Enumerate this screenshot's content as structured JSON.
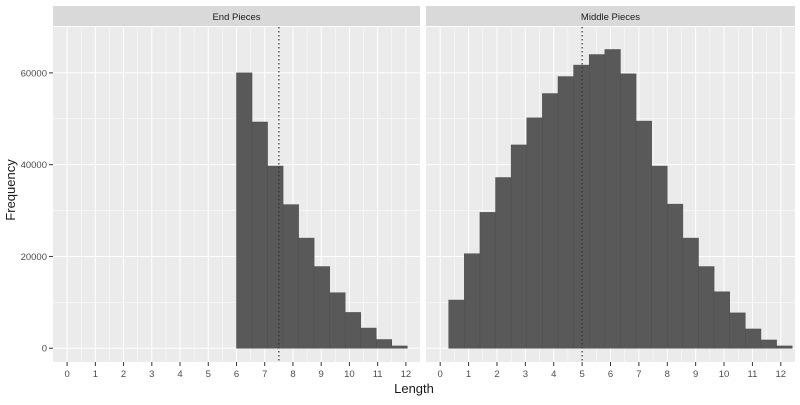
{
  "chart_data": {
    "type": "bar",
    "xlabel": "Length",
    "ylabel": "Frequency",
    "xlim": [
      -0.5,
      12.5
    ],
    "ylim": [
      -3000,
      70000
    ],
    "x_ticks": [
      0,
      1,
      2,
      3,
      4,
      5,
      6,
      7,
      8,
      9,
      10,
      11,
      12
    ],
    "y_ticks": [
      0,
      20000,
      40000,
      60000
    ],
    "y_tick_labels": [
      "0",
      "20000",
      "40000",
      "60000"
    ],
    "bin_width": 0.55,
    "colors": {
      "panel_bg": "#ebebeb",
      "grid": "#ffffff",
      "strip_bg": "#d9d9d9",
      "bar_fill": "#595959",
      "bar_stroke": "#4d4d4d",
      "text": "#4d4d4d",
      "title_text": "#1a1a1a",
      "vline": "#333333"
    },
    "panels": [
      {
        "title": "End Pieces",
        "vline": 7.5,
        "bins": [
          {
            "x0": 6.0,
            "value": 60000
          },
          {
            "x0": 6.55,
            "value": 49300
          },
          {
            "x0": 7.1,
            "value": 39700
          },
          {
            "x0": 7.65,
            "value": 31300
          },
          {
            "x0": 8.2,
            "value": 24000
          },
          {
            "x0": 8.75,
            "value": 17800
          },
          {
            "x0": 9.3,
            "value": 12100
          },
          {
            "x0": 9.85,
            "value": 7800
          },
          {
            "x0": 10.4,
            "value": 4400
          },
          {
            "x0": 10.95,
            "value": 1900
          },
          {
            "x0": 11.5,
            "value": 500
          }
        ]
      },
      {
        "title": "Middle Pieces",
        "vline": 5.0,
        "bins": [
          {
            "x0": 0.3,
            "value": 10500
          },
          {
            "x0": 0.85,
            "value": 20600
          },
          {
            "x0": 1.4,
            "value": 29600
          },
          {
            "x0": 1.95,
            "value": 37200
          },
          {
            "x0": 2.5,
            "value": 44300
          },
          {
            "x0": 3.05,
            "value": 50200
          },
          {
            "x0": 3.6,
            "value": 55500
          },
          {
            "x0": 4.15,
            "value": 59200
          },
          {
            "x0": 4.7,
            "value": 61700
          },
          {
            "x0": 5.25,
            "value": 64000
          },
          {
            "x0": 5.8,
            "value": 65100
          },
          {
            "x0": 6.35,
            "value": 59800
          },
          {
            "x0": 6.9,
            "value": 49500
          },
          {
            "x0": 7.45,
            "value": 39700
          },
          {
            "x0": 8.0,
            "value": 31400
          },
          {
            "x0": 8.55,
            "value": 24000
          },
          {
            "x0": 9.1,
            "value": 17800
          },
          {
            "x0": 9.65,
            "value": 12300
          },
          {
            "x0": 10.2,
            "value": 7700
          },
          {
            "x0": 10.75,
            "value": 4200
          },
          {
            "x0": 11.3,
            "value": 1800
          },
          {
            "x0": 11.85,
            "value": 500
          }
        ]
      }
    ]
  }
}
